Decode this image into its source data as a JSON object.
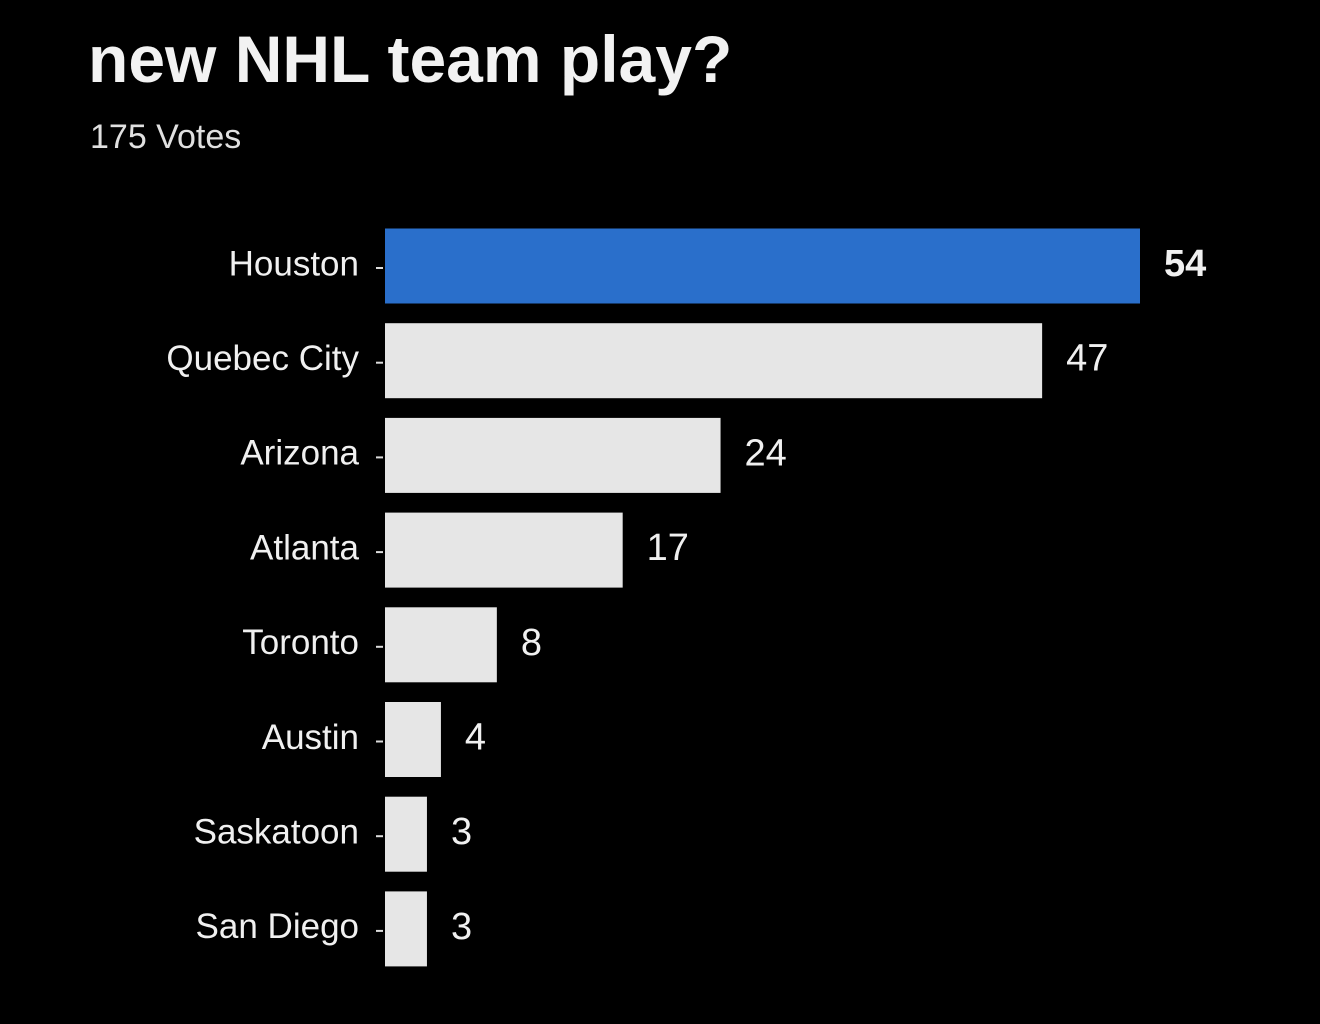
{
  "chart_data": {
    "type": "bar",
    "orientation": "horizontal",
    "title": "new NHL team play?",
    "subtitle": "175 Votes",
    "categories": [
      "Houston",
      "Quebec City",
      "Arizona",
      "Atlanta",
      "Toronto",
      "Austin",
      "Saskatoon",
      "San Diego"
    ],
    "values": [
      54,
      47,
      24,
      17,
      8,
      4,
      3,
      3
    ],
    "colors": [
      "#2a6fcb",
      "#e6e6e6",
      "#e6e6e6",
      "#e6e6e6",
      "#e6e6e6",
      "#e6e6e6",
      "#e6e6e6",
      "#e6e6e6"
    ]
  }
}
